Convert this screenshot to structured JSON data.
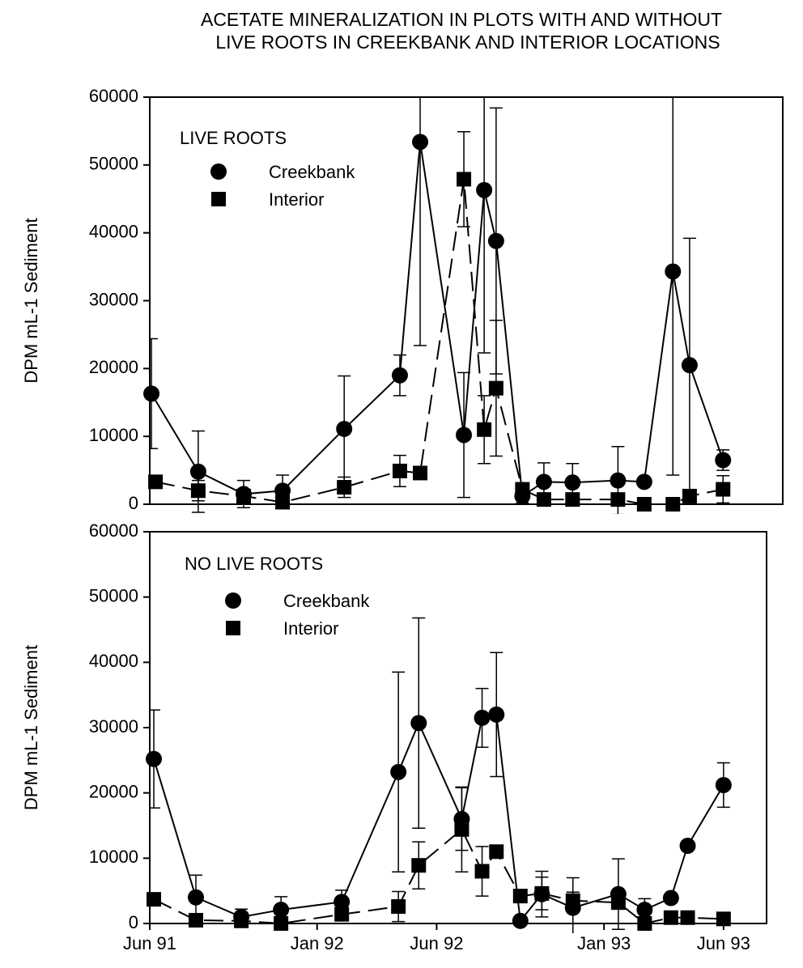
{
  "chart_data": [
    {
      "type": "line",
      "title": [
        "ACETATE MINERALIZATION IN PLOTS WITH AND WITHOUT",
        "LIVE ROOTS IN CREEKBANK AND INTERIOR LOCATIONS"
      ],
      "annotation": "LIVE ROOTS",
      "ylabel": "DPM mL-1 Sediment",
      "xlim": [
        0,
        26.5
      ],
      "ylim": [
        0,
        60000
      ],
      "yticks": [
        0,
        10000,
        20000,
        30000,
        40000,
        50000,
        60000
      ],
      "series": [
        {
          "name": "Creekbank",
          "color": "#000000",
          "marker": "circle",
          "dash": false,
          "x": [
            0.07,
            2.03,
            3.93,
            5.56,
            8.14,
            10.47,
            11.32,
            13.15,
            14.0,
            14.5,
            15.6,
            16.5,
            17.7,
            19.6,
            20.7,
            21.9,
            22.6,
            24.0
          ],
          "values": [
            16300,
            4800,
            1500,
            2000,
            11100,
            19000,
            53400,
            10200,
            46300,
            38800,
            1200,
            3300,
            3200,
            3500,
            3300,
            34300,
            20500,
            6500
          ],
          "errors": [
            8100,
            6000,
            2000,
            2300,
            7800,
            3000,
            30000,
            9200,
            24000,
            19600,
            1000,
            2800,
            2800,
            5000,
            0,
            30000,
            18700,
            1500
          ]
        },
        {
          "name": "Interior",
          "color": "#000000",
          "marker": "square",
          "dash": true,
          "x": [
            0.24,
            2.03,
            3.93,
            5.56,
            8.14,
            10.47,
            11.32,
            13.15,
            14.0,
            14.5,
            15.6,
            16.5,
            17.7,
            19.6,
            20.7,
            21.9,
            22.6,
            24.0
          ],
          "values": [
            3300,
            2000,
            1200,
            300,
            2500,
            4900,
            4600,
            47900,
            11000,
            17100,
            2200,
            700,
            700,
            700,
            0,
            0,
            1200,
            2200
          ],
          "errors": [
            0,
            1500,
            1000,
            0,
            1500,
            2300,
            0,
            7000,
            5000,
            10000,
            0,
            0,
            0,
            0,
            0,
            0,
            0,
            2000
          ]
        }
      ]
    },
    {
      "type": "line",
      "annotation": "NO LIVE ROOTS",
      "ylabel": "DPM mL-1 Sediment",
      "xlim": [
        0,
        25.8
      ],
      "xticks": [
        {
          "value": 0,
          "label": "Jun 91"
        },
        {
          "value": 7,
          "label": "Jan 92"
        },
        {
          "value": 12,
          "label": "Jun 92"
        },
        {
          "value": 19,
          "label": "Jan 93"
        },
        {
          "value": 24,
          "label": "Jun 93"
        }
      ],
      "ylim": [
        0,
        60000
      ],
      "yticks": [
        0,
        10000,
        20000,
        30000,
        40000,
        50000,
        60000
      ],
      "series": [
        {
          "name": "Creekbank",
          "color": "#000000",
          "marker": "circle",
          "dash": false,
          "x": [
            0.17,
            1.93,
            3.83,
            5.49,
            8.03,
            10.4,
            11.25,
            13.05,
            13.9,
            14.5,
            15.5,
            16.4,
            17.7,
            19.6,
            20.7,
            21.8,
            22.5,
            24.0
          ],
          "values": [
            25200,
            4000,
            1000,
            2100,
            3300,
            23200,
            30700,
            16000,
            31500,
            32000,
            400,
            4500,
            2400,
            4500,
            2100,
            3900,
            11900,
            21200
          ],
          "errors": [
            7500,
            3400,
            1200,
            2000,
            1800,
            15300,
            16100,
            4800,
            4500,
            9500,
            0,
            3500,
            4600,
            5400,
            1700,
            600,
            0,
            3400
          ]
        },
        {
          "name": "Interior",
          "color": "#000000",
          "marker": "square",
          "dash": true,
          "x": [
            0.17,
            1.93,
            3.83,
            5.49,
            8.03,
            10.4,
            11.25,
            13.05,
            13.9,
            14.5,
            15.5,
            16.4,
            17.7,
            19.6,
            20.7,
            21.8,
            22.5,
            24.0
          ],
          "values": [
            3700,
            500,
            400,
            0,
            1400,
            2600,
            8900,
            14400,
            8000,
            11000,
            4200,
            4600,
            3500,
            3200,
            0,
            900,
            900,
            700
          ],
          "errors": [
            0,
            0,
            0,
            0,
            0,
            2300,
            3600,
            6500,
            3800,
            0,
            0,
            2500,
            1300,
            0,
            0,
            0,
            0,
            0
          ]
        }
      ]
    }
  ]
}
